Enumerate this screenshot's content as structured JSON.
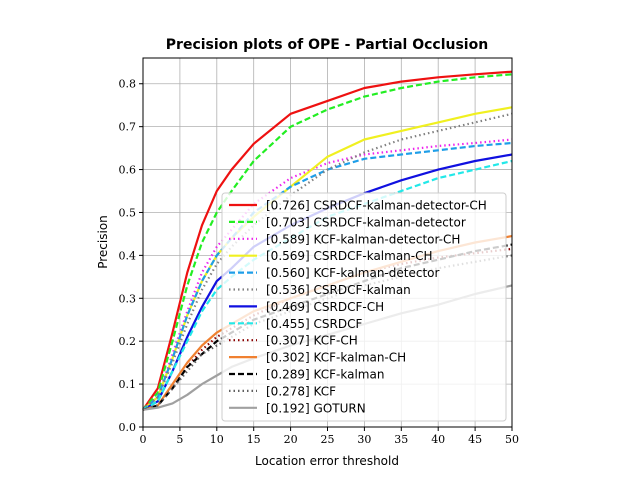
{
  "chart_data": {
    "type": "line",
    "title": "Precision plots of OPE - Partial Occlusion",
    "xlabel": "Location error threshold",
    "ylabel": "Precision",
    "xlim": [
      0,
      50
    ],
    "ylim": [
      0,
      0.86
    ],
    "xticks": [
      0,
      5,
      10,
      15,
      20,
      25,
      30,
      35,
      40,
      45,
      50
    ],
    "yticks": [
      0.0,
      0.1,
      0.2,
      0.3,
      0.4,
      0.5,
      0.6,
      0.7,
      0.8
    ],
    "xtick_labels": [
      "0",
      "5",
      "10",
      "15",
      "20",
      "25",
      "30",
      "35",
      "40",
      "45",
      "50"
    ],
    "ytick_labels": [
      "0.0",
      "0.1",
      "0.2",
      "0.3",
      "0.4",
      "0.5",
      "0.6",
      "0.7",
      "0.8"
    ],
    "grid": true,
    "legend_position": "lower-right",
    "x": [
      0,
      2,
      4,
      6,
      8,
      10,
      12,
      15,
      20,
      25,
      30,
      35,
      40,
      45,
      50
    ],
    "series": [
      {
        "name": "[0.726] CSRDCF-kalman-detector-CH",
        "color": "#ee1111",
        "dash": "solid",
        "values": [
          0.04,
          0.09,
          0.22,
          0.36,
          0.47,
          0.55,
          0.6,
          0.66,
          0.73,
          0.76,
          0.79,
          0.805,
          0.815,
          0.822,
          0.828
        ]
      },
      {
        "name": "[0.703] CSRDCF-kalman-detector",
        "color": "#22ee22",
        "dash": "dashed",
        "values": [
          0.04,
          0.08,
          0.2,
          0.33,
          0.43,
          0.5,
          0.55,
          0.62,
          0.7,
          0.74,
          0.77,
          0.79,
          0.805,
          0.815,
          0.822
        ]
      },
      {
        "name": "[0.589] KCF-kalman-detector-CH",
        "color": "#ee22ee",
        "dash": "dotted",
        "values": [
          0.04,
          0.07,
          0.17,
          0.27,
          0.36,
          0.42,
          0.46,
          0.52,
          0.58,
          0.615,
          0.635,
          0.645,
          0.655,
          0.662,
          0.67
        ]
      },
      {
        "name": "[0.569] CSRDCF-kalman-CH",
        "color": "#f0f020",
        "dash": "solid",
        "values": [
          0.04,
          0.07,
          0.16,
          0.26,
          0.34,
          0.4,
          0.44,
          0.49,
          0.56,
          0.63,
          0.67,
          0.69,
          0.71,
          0.73,
          0.745
        ]
      },
      {
        "name": "[0.560] KCF-kalman-detector",
        "color": "#1e9ee8",
        "dash": "dashed",
        "values": [
          0.04,
          0.07,
          0.16,
          0.26,
          0.34,
          0.4,
          0.44,
          0.5,
          0.56,
          0.6,
          0.625,
          0.635,
          0.645,
          0.655,
          0.662
        ]
      },
      {
        "name": "[0.536] CSRDCF-kalman",
        "color": "#808080",
        "dash": "dotted",
        "values": [
          0.04,
          0.07,
          0.15,
          0.24,
          0.32,
          0.38,
          0.42,
          0.47,
          0.54,
          0.6,
          0.64,
          0.67,
          0.69,
          0.71,
          0.73
        ]
      },
      {
        "name": "[0.469] CSRDCF-CH",
        "color": "#1010e0",
        "dash": "solid",
        "values": [
          0.04,
          0.06,
          0.13,
          0.21,
          0.28,
          0.34,
          0.37,
          0.42,
          0.47,
          0.51,
          0.545,
          0.575,
          0.6,
          0.62,
          0.635
        ]
      },
      {
        "name": "[0.455] CSRDCF",
        "color": "#22e8e8",
        "dash": "dashed",
        "values": [
          0.04,
          0.06,
          0.13,
          0.2,
          0.27,
          0.32,
          0.35,
          0.39,
          0.44,
          0.49,
          0.52,
          0.55,
          0.58,
          0.6,
          0.62
        ]
      },
      {
        "name": "[0.307] KCF-CH",
        "color": "#8b0000",
        "dash": "dotted",
        "values": [
          0.04,
          0.05,
          0.09,
          0.14,
          0.18,
          0.21,
          0.23,
          0.26,
          0.3,
          0.33,
          0.36,
          0.38,
          0.395,
          0.405,
          0.415
        ]
      },
      {
        "name": "[0.302] KCF-kalman-CH",
        "color": "#f08030",
        "dash": "solid",
        "values": [
          0.04,
          0.05,
          0.1,
          0.15,
          0.19,
          0.22,
          0.24,
          0.27,
          0.3,
          0.33,
          0.36,
          0.385,
          0.41,
          0.43,
          0.445
        ]
      },
      {
        "name": "[0.289] KCF-kalman",
        "color": "#000000",
        "dash": "dashed",
        "values": [
          0.04,
          0.05,
          0.09,
          0.14,
          0.17,
          0.2,
          0.22,
          0.25,
          0.28,
          0.31,
          0.34,
          0.37,
          0.39,
          0.41,
          0.425
        ]
      },
      {
        "name": "[0.278] KCF",
        "color": "#606060",
        "dash": "dotted",
        "values": [
          0.04,
          0.05,
          0.09,
          0.13,
          0.17,
          0.19,
          0.21,
          0.24,
          0.27,
          0.3,
          0.33,
          0.35,
          0.37,
          0.385,
          0.4
        ]
      },
      {
        "name": "[0.192] GOTURN",
        "color": "#a0a0a0",
        "dash": "solid",
        "values": [
          0.04,
          0.045,
          0.055,
          0.075,
          0.1,
          0.12,
          0.14,
          0.16,
          0.19,
          0.215,
          0.24,
          0.265,
          0.285,
          0.31,
          0.33
        ]
      }
    ]
  }
}
